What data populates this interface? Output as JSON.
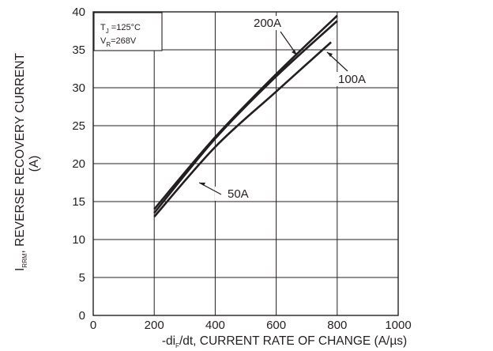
{
  "chart_data": {
    "type": "line",
    "xlabel": {
      "prefix": "-di",
      "sub": "F",
      "rest": "/dt, CURRENT RATE OF CHANGE (A/µs)"
    },
    "ylabel": {
      "prefix": "I",
      "sub": "RRM",
      "rest": ", REVERSE RECOVERY CURRENT",
      "line2": "(A)"
    },
    "xlim": [
      0,
      1000
    ],
    "ylim": [
      0,
      40
    ],
    "xticks": [
      0,
      200,
      400,
      600,
      800,
      1000
    ],
    "yticks": [
      0,
      5,
      10,
      15,
      20,
      25,
      30,
      35,
      40
    ],
    "grid": true,
    "conditions": {
      "tj": {
        "prefix": "T",
        "sub": "J",
        "rest": " =125°C"
      },
      "vr": {
        "prefix": "V",
        "sub": "R",
        "rest": "=268V"
      }
    },
    "series": [
      {
        "name": "200A",
        "x": [
          200,
          400,
          600,
          800
        ],
        "y": [
          14.0,
          23.5,
          31.8,
          39.5
        ]
      },
      {
        "name": "100A",
        "x": [
          200,
          400,
          600,
          800
        ],
        "y": [
          13.5,
          23.3,
          31.5,
          38.8
        ]
      },
      {
        "name": "50A",
        "x": [
          200,
          400,
          600,
          780
        ],
        "y": [
          13.0,
          22.2,
          29.5,
          36.0
        ]
      }
    ],
    "labels": [
      "200A",
      "100A",
      "50A"
    ]
  }
}
